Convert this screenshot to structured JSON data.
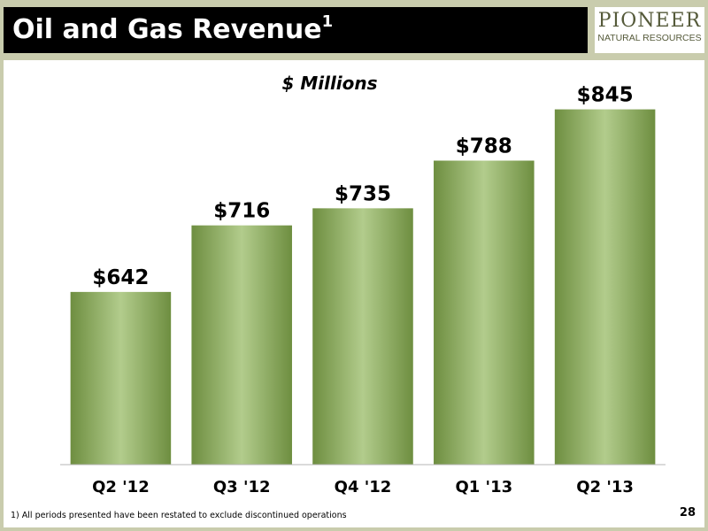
{
  "header": {
    "title": "Oil and Gas Revenue",
    "title_superscript": "1",
    "logo_name": "PIONEER",
    "logo_subtitle": "NATURAL RESOURCES"
  },
  "chart_data": {
    "type": "bar",
    "subtitle": "$ Millions",
    "categories": [
      "Q2 '12",
      "Q3 '12",
      "Q4 '12",
      "Q1 '13",
      "Q2 '13"
    ],
    "values": [
      642,
      716,
      735,
      788,
      845
    ],
    "data_labels": [
      "$642",
      "$716",
      "$735",
      "$788",
      "$845"
    ],
    "ylim": [
      450,
      880
    ],
    "grid": false,
    "bar_color": "#7a9a4a"
  },
  "footer": {
    "footnote": "1)  All periods presented have been restated to exclude discontinued operations",
    "page_number": "28"
  }
}
